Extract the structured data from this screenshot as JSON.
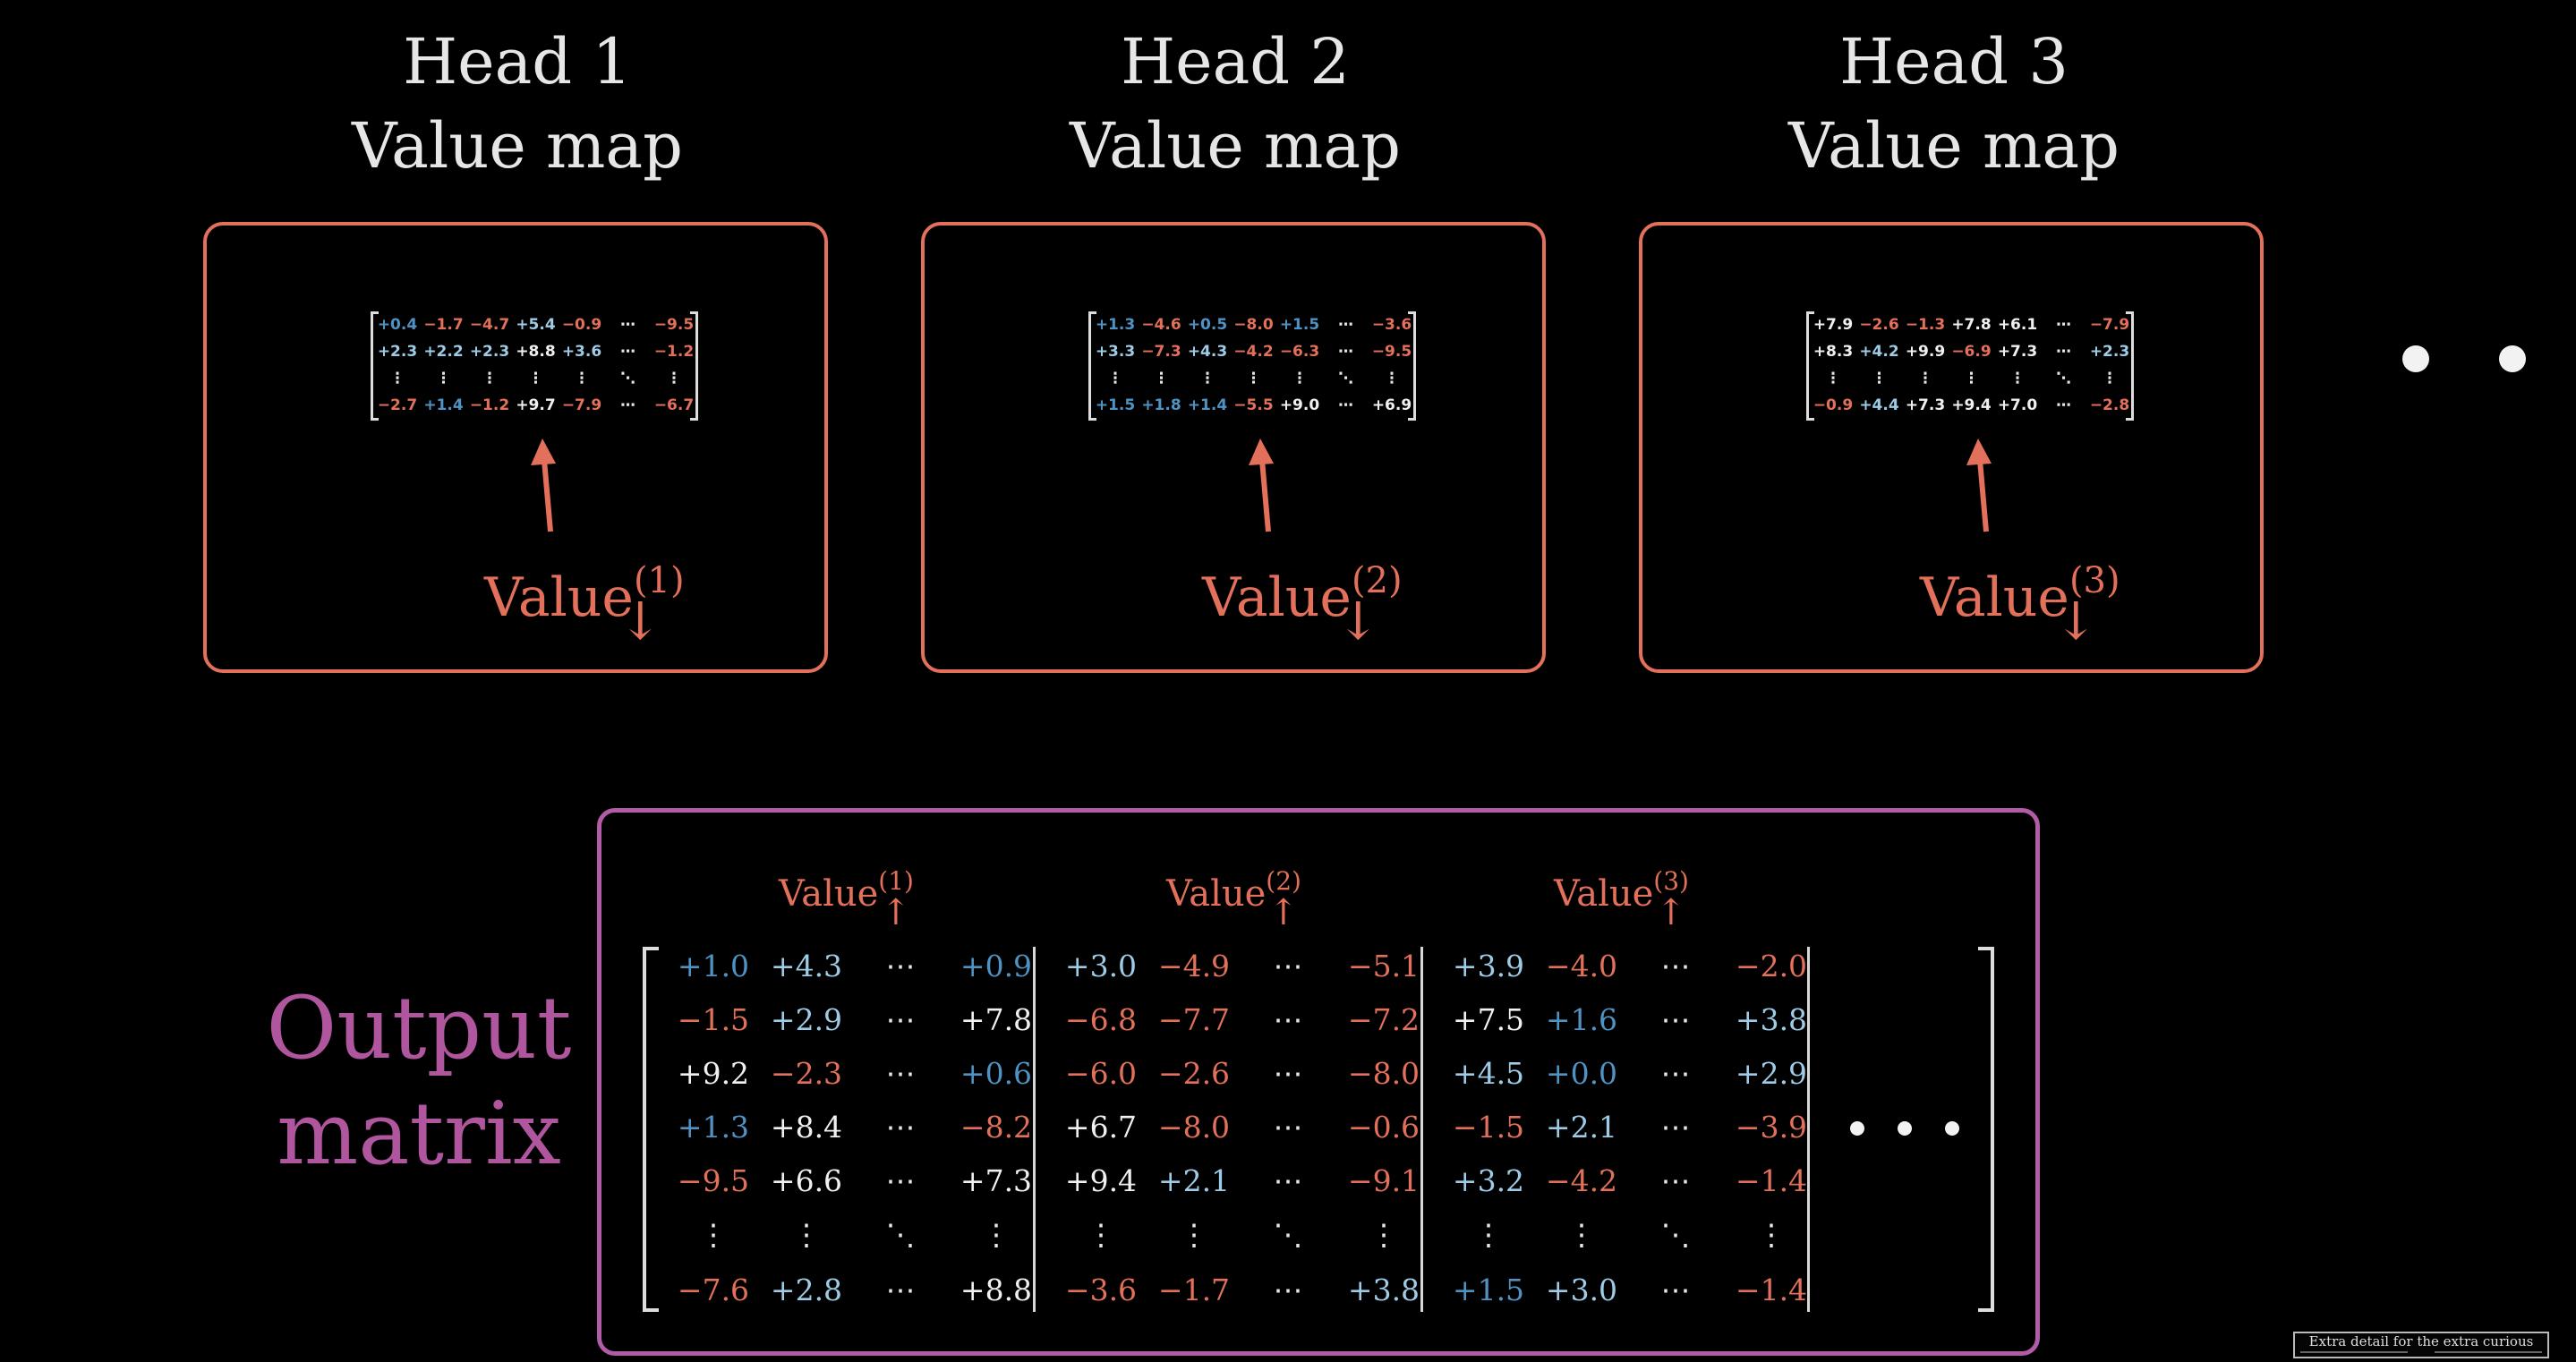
{
  "heads": [
    {
      "title_line1": "Head 1",
      "title_line2": "Value map",
      "value_label": "Value",
      "superscript": "(1)",
      "rows": [
        [
          "+0.4",
          "−1.7",
          "−4.7",
          "+5.4",
          "−0.9",
          "⋯",
          "−9.5"
        ],
        [
          "+2.3",
          "+2.2",
          "+2.3",
          "+8.8",
          "+3.6",
          "⋯",
          "−1.2"
        ],
        [
          "⋮",
          "⋮",
          "⋮",
          "⋮",
          "⋮",
          "⋱",
          "⋮"
        ],
        [
          "−2.7",
          "+1.4",
          "−1.2",
          "+9.7",
          "−7.9",
          "⋯",
          "−6.7"
        ]
      ]
    },
    {
      "title_line1": "Head 2",
      "title_line2": "Value map",
      "value_label": "Value",
      "superscript": "(2)",
      "rows": [
        [
          "+1.3",
          "−4.6",
          "+0.5",
          "−8.0",
          "+1.5",
          "⋯",
          "−3.6"
        ],
        [
          "+3.3",
          "−7.3",
          "+4.3",
          "−4.2",
          "−6.3",
          "⋯",
          "−9.5"
        ],
        [
          "⋮",
          "⋮",
          "⋮",
          "⋮",
          "⋮",
          "⋱",
          "⋮"
        ],
        [
          "+1.5",
          "+1.8",
          "+1.4",
          "−5.5",
          "+9.0",
          "⋯",
          "+6.9"
        ]
      ]
    },
    {
      "title_line1": "Head 3",
      "title_line2": "Value map",
      "value_label": "Value",
      "superscript": "(3)",
      "rows": [
        [
          "+7.9",
          "−2.6",
          "−1.3",
          "+7.8",
          "+6.1",
          "⋯",
          "−7.9"
        ],
        [
          "+8.3",
          "+4.2",
          "+9.9",
          "−6.9",
          "+7.3",
          "⋯",
          "+2.3"
        ],
        [
          "⋮",
          "⋮",
          "⋮",
          "⋮",
          "⋮",
          "⋱",
          "⋮"
        ],
        [
          "−0.9",
          "+4.4",
          "+7.3",
          "+9.4",
          "+7.0",
          "⋯",
          "−2.8"
        ]
      ]
    }
  ],
  "output": {
    "title_line1": "Output",
    "title_line2": "matrix",
    "columns": [
      {
        "label": "Value",
        "superscript": "(1)"
      },
      {
        "label": "Value",
        "superscript": "(2)"
      },
      {
        "label": "Value",
        "superscript": "(3)"
      }
    ],
    "blocks": [
      [
        [
          "+1.0",
          "+4.3",
          "⋯",
          "+0.9"
        ],
        [
          "−1.5",
          "+2.9",
          "⋯",
          "+7.8"
        ],
        [
          "+9.2",
          "−2.3",
          "⋯",
          "+0.6"
        ],
        [
          "+1.3",
          "+8.4",
          "⋯",
          "−8.2"
        ],
        [
          "−9.5",
          "+6.6",
          "⋯",
          "+7.3"
        ],
        [
          "⋮",
          "⋮",
          "⋱",
          "⋮"
        ],
        [
          "−7.6",
          "+2.8",
          "⋯",
          "+8.8"
        ]
      ],
      [
        [
          "+3.0",
          "−4.9",
          "⋯",
          "−5.1"
        ],
        [
          "−6.8",
          "−7.7",
          "⋯",
          "−7.2"
        ],
        [
          "−6.0",
          "−2.6",
          "⋯",
          "−8.0"
        ],
        [
          "+6.7",
          "−8.0",
          "⋯",
          "−0.6"
        ],
        [
          "+9.4",
          "+2.1",
          "⋯",
          "−9.1"
        ],
        [
          "⋮",
          "⋮",
          "⋱",
          "⋮"
        ],
        [
          "−3.6",
          "−1.7",
          "⋯",
          "+3.8"
        ]
      ],
      [
        [
          "+3.9",
          "−4.0",
          "⋯",
          "−2.0"
        ],
        [
          "+7.5",
          "+1.6",
          "⋯",
          "+3.8"
        ],
        [
          "+4.5",
          "+0.0",
          "⋯",
          "+2.9"
        ],
        [
          "−1.5",
          "+2.1",
          "⋯",
          "−3.9"
        ],
        [
          "+3.2",
          "−4.2",
          "⋯",
          "−1.4"
        ],
        [
          "⋮",
          "⋮",
          "⋱",
          "⋮"
        ],
        [
          "+1.5",
          "+3.0",
          "⋯",
          "−1.4"
        ]
      ]
    ]
  },
  "colors": {
    "head_border": "#e2705a",
    "output_border": "#b25ba6",
    "output_title": "#b0569f",
    "value_label": "#e2705a",
    "positive_strong": "#f0f0f0",
    "positive_light": "#9ecbe6",
    "positive_blue": "#4f93c4",
    "negative": "#e2705a"
  },
  "footer": {
    "text": "Extra detail for the extra curious"
  }
}
